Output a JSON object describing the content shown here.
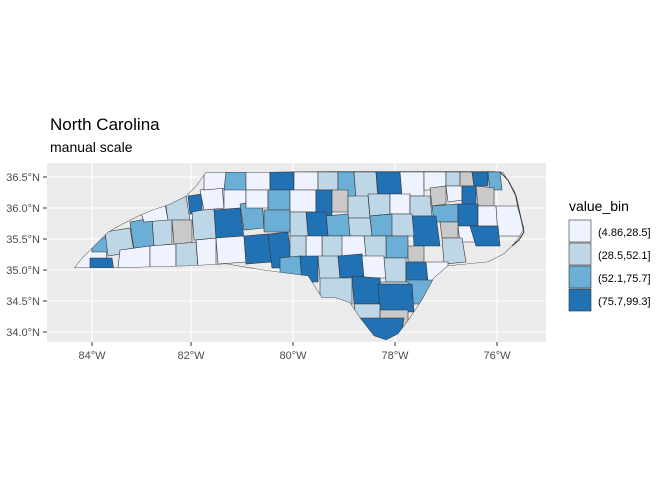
{
  "title": "North Carolina",
  "subtitle": "manual scale",
  "x_ticks": [
    "84°W",
    "82°W",
    "80°W",
    "78°W",
    "76°W"
  ],
  "y_ticks": [
    "34.0°N",
    "34.5°N",
    "35.0°N",
    "35.5°N",
    "36.0°N",
    "36.5°N"
  ],
  "legend": {
    "title": "value_bin",
    "items": [
      {
        "label": "(4.86,28.5]",
        "color": "#eff3ff"
      },
      {
        "label": "(28.5,52.1]",
        "color": "#bdd7e7"
      },
      {
        "label": "(52.1,75.7]",
        "color": "#6baed6"
      },
      {
        "label": "(75.7,99.3]",
        "color": "#2171b5"
      }
    ]
  },
  "colors": {
    "panel": "#ebebeb",
    "grid": "#ffffff",
    "county_border": "#333333",
    "missing": "#c9c9c9"
  }
}
